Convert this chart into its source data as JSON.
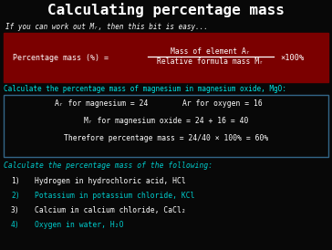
{
  "title": "Calculating percentage mass",
  "title_color": "#ffffff",
  "bg_color": "#080808",
  "subtitle": "If you can work out Mᵣ, then this bit is easy...",
  "subtitle_color": "#ffffff",
  "formula_bg": "#7b0000",
  "formula_left": "Percentage mass (%) =",
  "formula_numerator": "Mass of element Aᵣ",
  "formula_denominator": "Relative formula mass Mᵣ",
  "formula_multiply": "×100%",
  "formula_text_color": "#ffffff",
  "example_header": "Calculate the percentage mass of magnesium in magnesium oxide, MgO:",
  "example_header_color": "#00e5e5",
  "example_box_border": "#336688",
  "example_line1_left": "Aᵣ for magnesium = 24",
  "example_line1_right": "Ar for oxygen = 16",
  "example_line2": "Mᵣ for magnesium oxide = 24 + 16 = 40",
  "example_line3": "Therefore percentage mass = 24/40 × 100% = 60%",
  "example_text_color": "#ffffff",
  "task_header": "Calculate the percentage mass of the following:",
  "task_header_color": "#00cccc",
  "tasks": [
    {
      "num": "1)",
      "text": "Hydrogen in hydrochloric acid, HCl",
      "color": "#ffffff"
    },
    {
      "num": "2)",
      "text": "Potassium in potassium chloride, KCl",
      "color": "#00cccc"
    },
    {
      "num": "3)",
      "text": "Calcium in calcium chloride, CaCl₂",
      "color": "#ffffff"
    },
    {
      "num": "4)",
      "text": "Oxygen in water, H₂O",
      "color": "#00cccc"
    }
  ]
}
